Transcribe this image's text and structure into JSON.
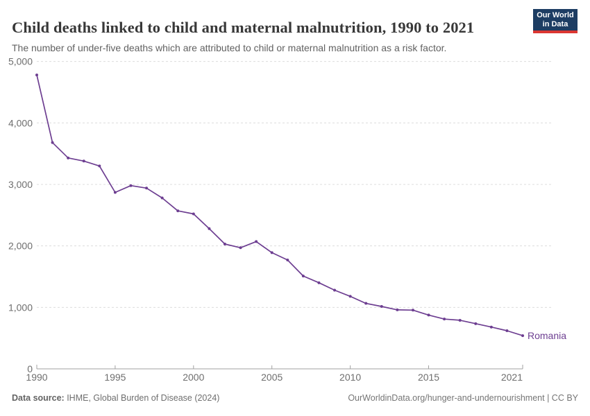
{
  "header": {
    "title": "Child deaths linked to child and maternal malnutrition, 1990 to 2021",
    "subtitle": "The number of under-five deaths which are attributed to child or maternal malnutrition as a risk factor."
  },
  "logo": {
    "line1": "Our World",
    "line2": "in Data",
    "bg_color": "#1d3d63",
    "stripe_color": "#dc3732"
  },
  "footer": {
    "data_source_label": "Data source:",
    "data_source_value": " IHME, Global Burden of Disease (2024)",
    "link_text": "OurWorldinData.org/hunger-and-undernourishment",
    "license_text": " | CC BY"
  },
  "chart_data": {
    "type": "line",
    "title": "Child deaths linked to child and maternal malnutrition, 1990 to 2021",
    "subtitle": "The number of under-five deaths which are attributed to child or maternal malnutrition as a risk factor.",
    "xlabel": "",
    "ylabel": "",
    "ylim": [
      0,
      5000
    ],
    "x_range": [
      1990,
      2021
    ],
    "grid": "dashed-horizontal",
    "legend_position": "end-of-line-label",
    "line_color": "#6d3e91",
    "axis_color": "#a1a1a1",
    "gridline_color": "#dcdcdc",
    "tick_label_color": "#6e6e6e",
    "yticks": [
      {
        "value": 0,
        "label": "0"
      },
      {
        "value": 1000,
        "label": "1,000"
      },
      {
        "value": 2000,
        "label": "2,000"
      },
      {
        "value": 3000,
        "label": "3,000"
      },
      {
        "value": 4000,
        "label": "4,000"
      },
      {
        "value": 5000,
        "label": "5,000"
      }
    ],
    "xticks": [
      {
        "value": 1990,
        "label": "1990",
        "anchor": "middle"
      },
      {
        "value": 1995,
        "label": "1995",
        "anchor": "middle"
      },
      {
        "value": 2000,
        "label": "2000",
        "anchor": "middle"
      },
      {
        "value": 2005,
        "label": "2005",
        "anchor": "middle"
      },
      {
        "value": 2010,
        "label": "2010",
        "anchor": "middle"
      },
      {
        "value": 2015,
        "label": "2015",
        "anchor": "middle"
      },
      {
        "value": 2021,
        "label": "2021",
        "anchor": "end"
      }
    ],
    "years": [
      1990,
      1991,
      1992,
      1993,
      1994,
      1995,
      1996,
      1997,
      1998,
      1999,
      2000,
      2001,
      2002,
      2003,
      2004,
      2005,
      2006,
      2007,
      2008,
      2009,
      2010,
      2011,
      2012,
      2013,
      2014,
      2015,
      2016,
      2017,
      2018,
      2019,
      2020,
      2021
    ],
    "series": [
      {
        "name": "Romania",
        "color": "#6d3e91",
        "values": [
          4780,
          3680,
          3430,
          3380,
          3300,
          2870,
          2980,
          2940,
          2780,
          2570,
          2520,
          2280,
          2030,
          1970,
          2070,
          1890,
          1770,
          1510,
          1400,
          1280,
          1180,
          1065,
          1015,
          960,
          955,
          875,
          810,
          790,
          735,
          680,
          620,
          540
        ]
      }
    ]
  }
}
